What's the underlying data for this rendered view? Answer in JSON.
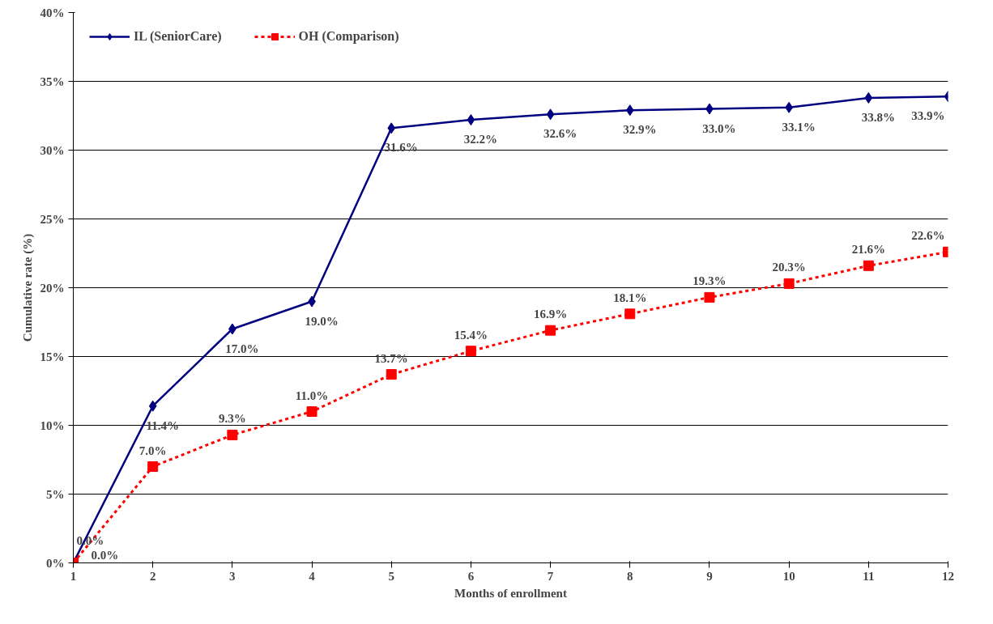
{
  "chart_data": {
    "type": "line",
    "xlabel": "Months of enrollment",
    "ylabel": "Cumulative rate (%)",
    "x": [
      1,
      2,
      3,
      4,
      5,
      6,
      7,
      8,
      9,
      10,
      11,
      12
    ],
    "series": [
      {
        "name": "IL (SeniorCare)",
        "color": "#000080",
        "marker": "diamond",
        "line_style": "solid",
        "values": [
          0.0,
          11.4,
          17.0,
          19.0,
          31.6,
          32.2,
          32.6,
          32.9,
          33.0,
          33.1,
          33.8,
          33.9
        ],
        "value_labels": [
          "0.0%",
          "11.4%",
          "17.0%",
          "19.0%",
          "31.6%",
          "32.2%",
          "32.6%",
          "32.9%",
          "33.0%",
          "33.1%",
          "33.8%",
          "33.9%"
        ]
      },
      {
        "name": "OH (Comparison)",
        "color": "#ff0000",
        "marker": "square",
        "line_style": "dotted",
        "values": [
          0.0,
          7.0,
          9.3,
          11.0,
          13.7,
          15.4,
          16.9,
          18.1,
          19.3,
          20.3,
          21.6,
          22.6
        ],
        "value_labels": [
          "0.0%",
          "7.0%",
          "9.3%",
          "11.0%",
          "13.7%",
          "15.4%",
          "16.9%",
          "18.1%",
          "19.3%",
          "20.3%",
          "21.6%",
          "22.6%"
        ]
      }
    ],
    "xlim": [
      1,
      12
    ],
    "xticks": [
      1,
      2,
      3,
      4,
      5,
      6,
      7,
      8,
      9,
      10,
      11,
      12
    ],
    "ylim": [
      0,
      40
    ],
    "yticks": [
      {
        "value": 0,
        "label": "0%"
      },
      {
        "value": 5,
        "label": "5%"
      },
      {
        "value": 10,
        "label": "10%"
      },
      {
        "value": 15,
        "label": "15%"
      },
      {
        "value": 20,
        "label": "20%"
      },
      {
        "value": 25,
        "label": "25%"
      },
      {
        "value": 30,
        "label": "30%"
      },
      {
        "value": 35,
        "label": "35%"
      },
      {
        "value": 40,
        "label": "40%"
      }
    ],
    "grid": "y",
    "legend": "top left"
  }
}
